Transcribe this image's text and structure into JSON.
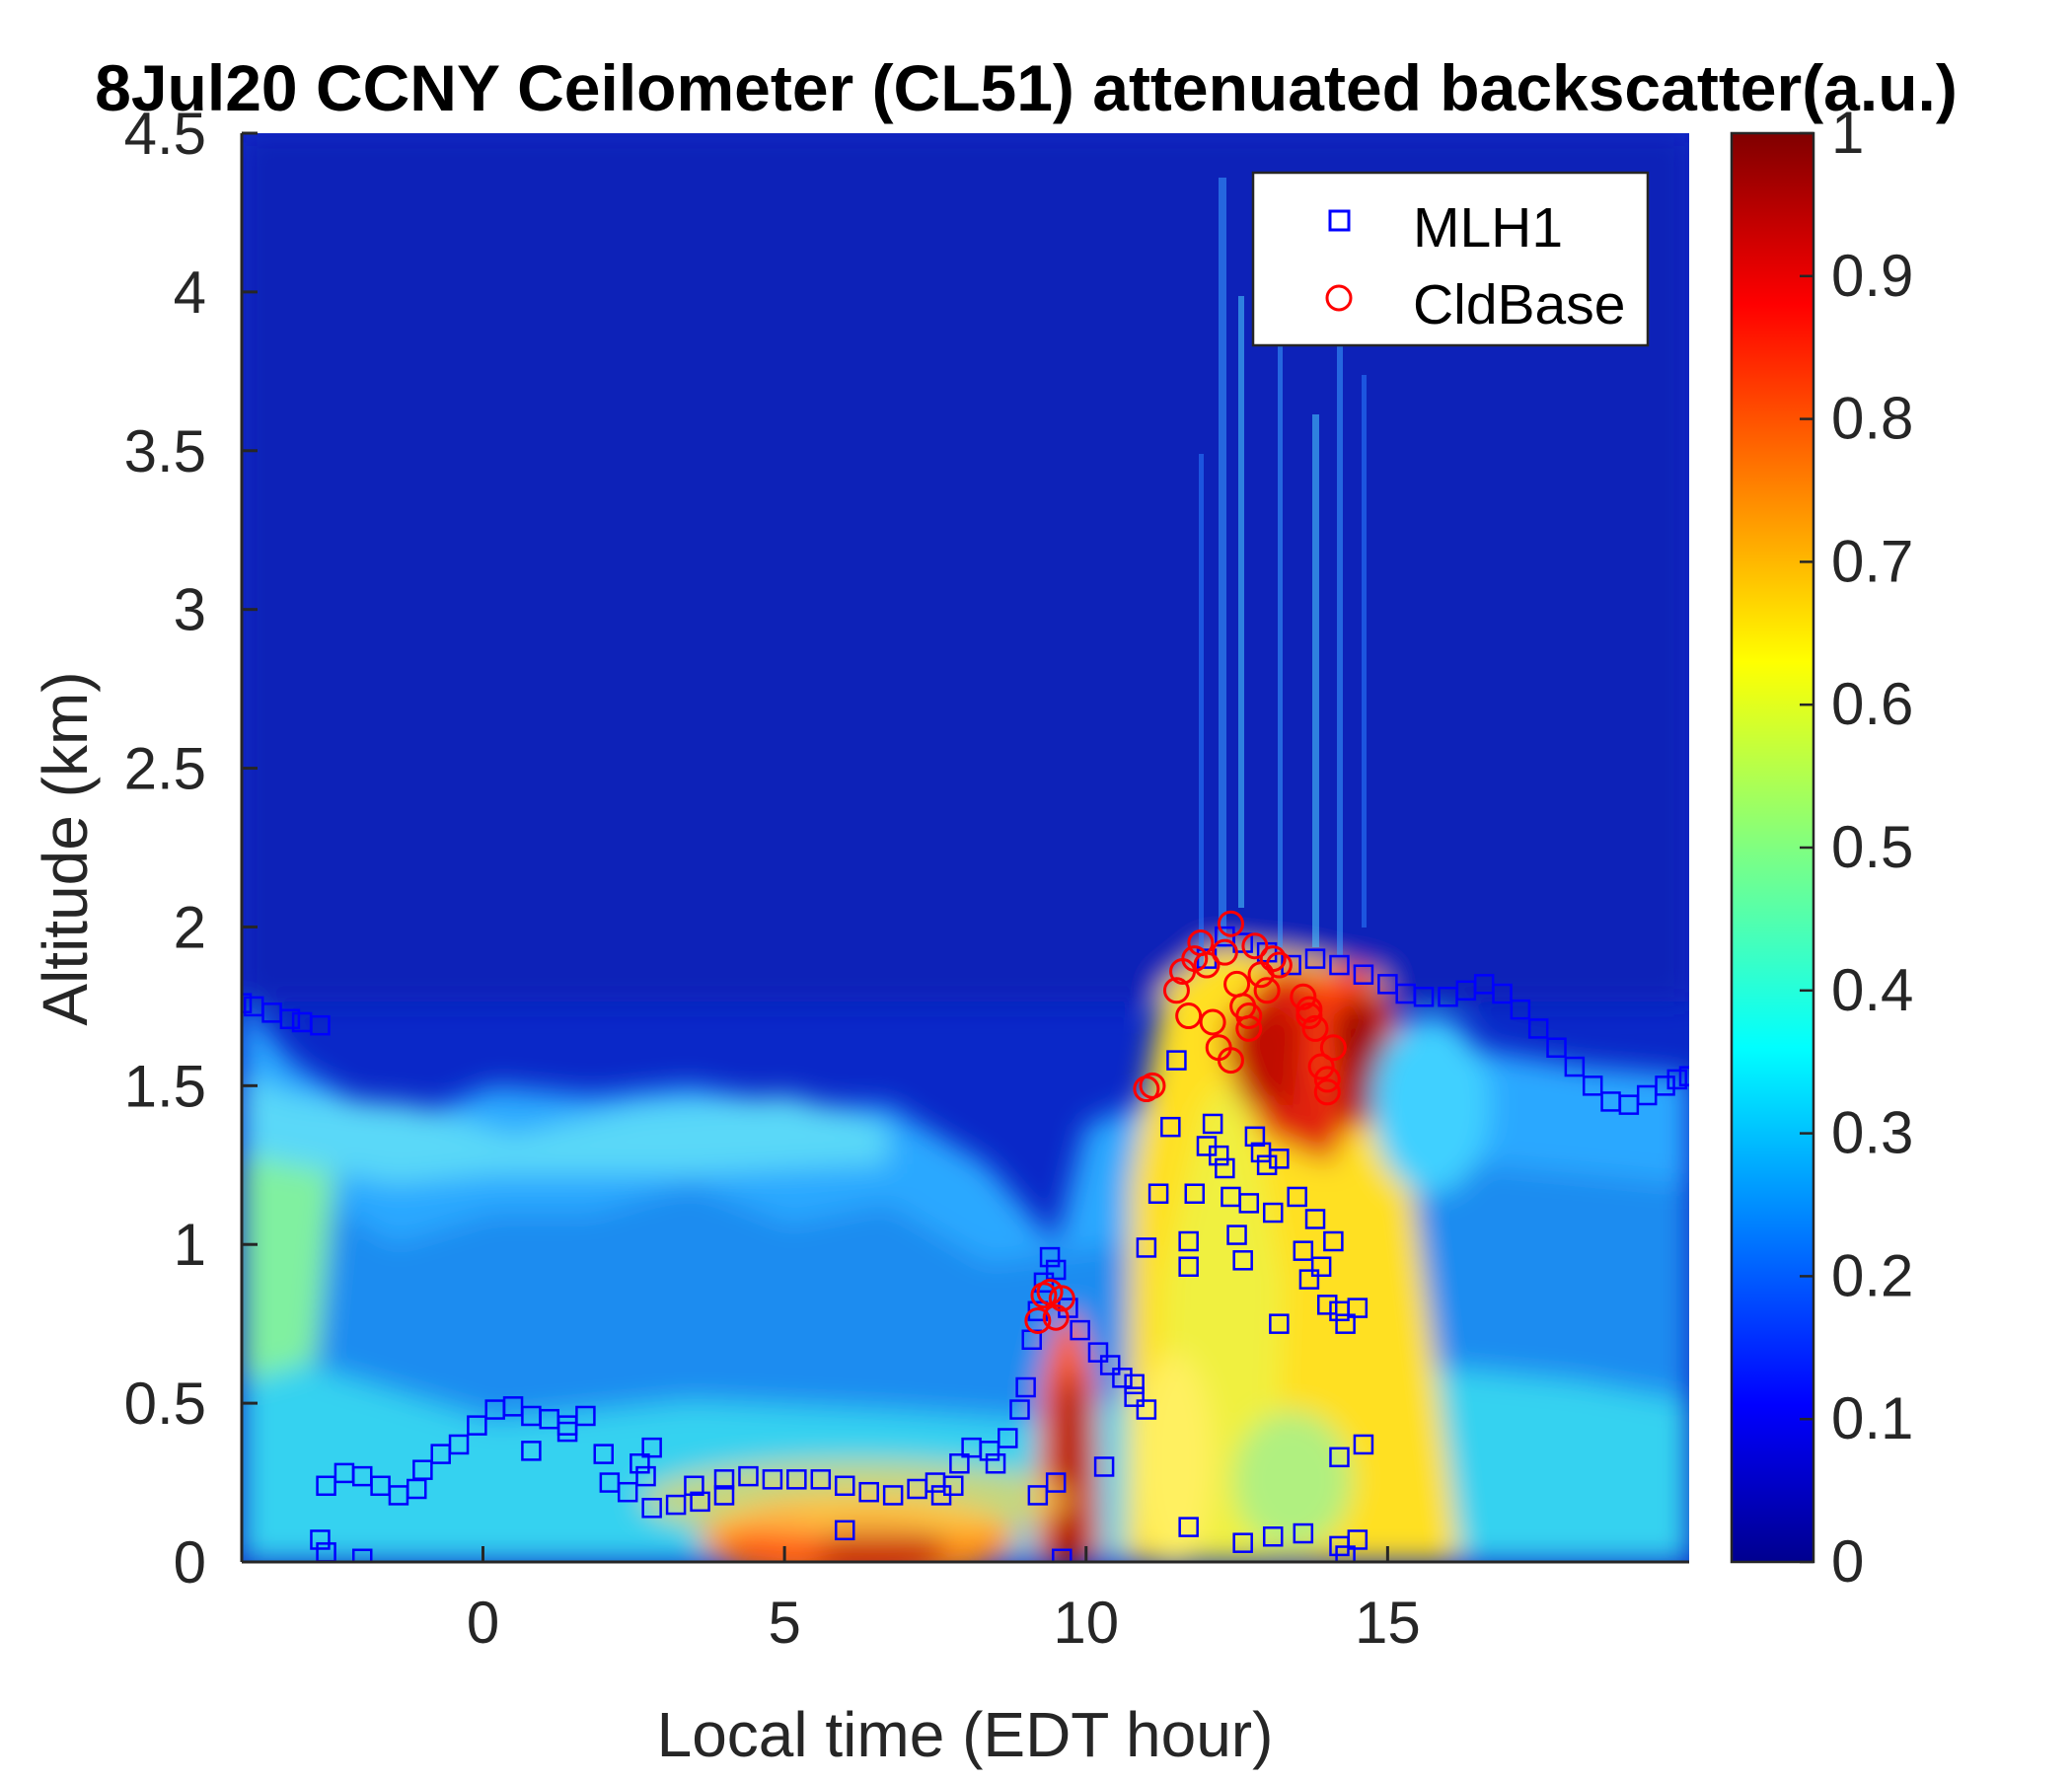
{
  "chart_data": {
    "type": "heatmap",
    "title": "8Jul20 CCNY Ceilometer (CL51) attenuated backscatter(a.u.)",
    "xlabel": "Local time (EDT hour)",
    "ylabel": "Altitude (km)",
    "xlim": [
      -4,
      20
    ],
    "ylim": [
      0,
      4.5
    ],
    "x_ticks": [
      "0",
      "5",
      "10",
      "15"
    ],
    "x_tick_values": [
      0,
      5,
      10,
      15
    ],
    "y_ticks": [
      "0",
      "0.5",
      "1",
      "1.5",
      "2",
      "2.5",
      "3",
      "3.5",
      "4",
      "4.5"
    ],
    "y_tick_values": [
      0,
      0.5,
      1,
      1.5,
      2,
      2.5,
      3,
      3.5,
      4,
      4.5
    ],
    "colorbar": {
      "colormap": "jet",
      "range": [
        0,
        1
      ],
      "ticks": [
        "0",
        "0.1",
        "0.2",
        "0.3",
        "0.4",
        "0.5",
        "0.6",
        "0.7",
        "0.8",
        "0.9",
        "1"
      ],
      "tick_values": [
        0,
        0.1,
        0.2,
        0.3,
        0.4,
        0.5,
        0.6,
        0.7,
        0.8,
        0.9,
        1
      ]
    },
    "legend": {
      "position": "top-right",
      "entries": [
        {
          "label": "MLH1",
          "marker": "square",
          "color": "#0000ff"
        },
        {
          "label": "CldBase",
          "marker": "circle",
          "color": "#ff0000"
        }
      ]
    },
    "series": [
      {
        "name": "MLH1",
        "marker": "square",
        "color": "#0000ff",
        "points": [
          [
            -4.0,
            1.76
          ],
          [
            -3.8,
            1.75
          ],
          [
            -3.5,
            1.73
          ],
          [
            -3.2,
            1.71
          ],
          [
            -3.0,
            1.7
          ],
          [
            -2.7,
            1.69
          ],
          [
            -2.7,
            0.07
          ],
          [
            -2.6,
            0.03
          ],
          [
            -2.0,
            0.01
          ],
          [
            -2.6,
            0.24
          ],
          [
            -2.3,
            0.28
          ],
          [
            -2.0,
            0.27
          ],
          [
            -1.7,
            0.24
          ],
          [
            -1.4,
            0.21
          ],
          [
            -1.1,
            0.23
          ],
          [
            -1.0,
            0.29
          ],
          [
            -0.7,
            0.34
          ],
          [
            -0.4,
            0.37
          ],
          [
            -0.1,
            0.43
          ],
          [
            0.2,
            0.48
          ],
          [
            0.5,
            0.49
          ],
          [
            0.8,
            0.46
          ],
          [
            1.1,
            0.45
          ],
          [
            1.4,
            0.43
          ],
          [
            1.7,
            0.46
          ],
          [
            0.8,
            0.35
          ],
          [
            1.4,
            0.41
          ],
          [
            2.0,
            0.34
          ],
          [
            2.1,
            0.25
          ],
          [
            2.4,
            0.22
          ],
          [
            2.7,
            0.27
          ],
          [
            2.8,
            0.36
          ],
          [
            2.6,
            0.31
          ],
          [
            2.8,
            0.17
          ],
          [
            3.2,
            0.18
          ],
          [
            3.6,
            0.19
          ],
          [
            4.0,
            0.21
          ],
          [
            3.5,
            0.24
          ],
          [
            4.0,
            0.26
          ],
          [
            4.4,
            0.27
          ],
          [
            4.8,
            0.26
          ],
          [
            5.2,
            0.26
          ],
          [
            5.6,
            0.26
          ],
          [
            6.0,
            0.24
          ],
          [
            6.4,
            0.22
          ],
          [
            6.8,
            0.21
          ],
          [
            7.2,
            0.23
          ],
          [
            7.5,
            0.25
          ],
          [
            7.8,
            0.24
          ],
          [
            7.6,
            0.21
          ],
          [
            6.0,
            0.1
          ],
          [
            7.9,
            0.31
          ],
          [
            8.1,
            0.36
          ],
          [
            8.4,
            0.35
          ],
          [
            8.7,
            0.39
          ],
          [
            8.9,
            0.48
          ],
          [
            9.0,
            0.55
          ],
          [
            8.5,
            0.31
          ],
          [
            9.1,
            0.7
          ],
          [
            9.2,
            0.79
          ],
          [
            9.3,
            0.88
          ],
          [
            9.4,
            0.96
          ],
          [
            9.5,
            0.92
          ],
          [
            9.7,
            0.8
          ],
          [
            9.9,
            0.73
          ],
          [
            10.2,
            0.66
          ],
          [
            10.4,
            0.62
          ],
          [
            10.6,
            0.58
          ],
          [
            10.8,
            0.52
          ],
          [
            11.0,
            0.48
          ],
          [
            9.2,
            0.21
          ],
          [
            9.5,
            0.25
          ],
          [
            9.6,
            0.01
          ],
          [
            10.3,
            0.3
          ],
          [
            10.8,
            0.56
          ],
          [
            11.0,
            0.99
          ],
          [
            11.2,
            1.16
          ],
          [
            11.4,
            1.37
          ],
          [
            11.5,
            1.58
          ],
          [
            11.7,
            1.01
          ],
          [
            11.7,
            0.93
          ],
          [
            11.8,
            1.16
          ],
          [
            12.0,
            1.31
          ],
          [
            12.1,
            1.38
          ],
          [
            12.2,
            1.28
          ],
          [
            12.3,
            1.24
          ],
          [
            12.4,
            1.15
          ],
          [
            12.5,
            1.03
          ],
          [
            12.6,
            0.95
          ],
          [
            12.7,
            1.13
          ],
          [
            12.8,
            1.34
          ],
          [
            12.9,
            1.29
          ],
          [
            13.0,
            1.25
          ],
          [
            13.1,
            1.1
          ],
          [
            13.2,
            1.27
          ],
          [
            13.2,
            0.75
          ],
          [
            13.5,
            1.15
          ],
          [
            13.6,
            0.98
          ],
          [
            13.7,
            0.89
          ],
          [
            13.8,
            1.08
          ],
          [
            13.9,
            0.93
          ],
          [
            14.0,
            0.81
          ],
          [
            14.1,
            1.01
          ],
          [
            14.2,
            0.79
          ],
          [
            14.3,
            0.75
          ],
          [
            14.5,
            0.8
          ],
          [
            11.7,
            0.11
          ],
          [
            12.6,
            0.06
          ],
          [
            13.1,
            0.08
          ],
          [
            13.6,
            0.09
          ],
          [
            14.2,
            0.05
          ],
          [
            14.3,
            0.02
          ],
          [
            14.5,
            0.07
          ],
          [
            14.2,
            0.33
          ],
          [
            14.6,
            0.37
          ],
          [
            12.0,
            1.9
          ],
          [
            12.3,
            1.97
          ],
          [
            12.6,
            1.95
          ],
          [
            13.0,
            1.92
          ],
          [
            13.4,
            1.88
          ],
          [
            13.8,
            1.9
          ],
          [
            14.2,
            1.88
          ],
          [
            14.6,
            1.85
          ],
          [
            15.0,
            1.82
          ],
          [
            15.3,
            1.79
          ],
          [
            15.6,
            1.78
          ],
          [
            16.0,
            1.78
          ],
          [
            16.3,
            1.8
          ],
          [
            16.6,
            1.82
          ],
          [
            16.9,
            1.79
          ],
          [
            17.2,
            1.74
          ],
          [
            17.5,
            1.68
          ],
          [
            17.8,
            1.62
          ],
          [
            18.1,
            1.56
          ],
          [
            18.4,
            1.5
          ],
          [
            18.7,
            1.45
          ],
          [
            19.0,
            1.44
          ],
          [
            19.3,
            1.47
          ],
          [
            19.6,
            1.5
          ],
          [
            19.8,
            1.52
          ],
          [
            20.0,
            1.53
          ]
        ]
      },
      {
        "name": "CldBase",
        "marker": "circle",
        "color": "#ff0000",
        "points": [
          [
            9.2,
            0.76
          ],
          [
            9.3,
            0.84
          ],
          [
            9.4,
            0.85
          ],
          [
            9.5,
            0.77
          ],
          [
            9.6,
            0.83
          ],
          [
            11.0,
            1.49
          ],
          [
            11.1,
            1.5
          ],
          [
            11.5,
            1.8
          ],
          [
            11.6,
            1.86
          ],
          [
            11.7,
            1.72
          ],
          [
            11.8,
            1.9
          ],
          [
            11.9,
            1.95
          ],
          [
            12.0,
            1.88
          ],
          [
            12.1,
            1.7
          ],
          [
            12.2,
            1.62
          ],
          [
            12.3,
            1.92
          ],
          [
            12.4,
            2.01
          ],
          [
            12.5,
            1.82
          ],
          [
            12.6,
            1.75
          ],
          [
            12.7,
            1.68
          ],
          [
            12.8,
            1.94
          ],
          [
            12.9,
            1.85
          ],
          [
            13.0,
            1.8
          ],
          [
            13.1,
            1.9
          ],
          [
            13.2,
            1.88
          ],
          [
            12.4,
            1.58
          ],
          [
            12.7,
            1.72
          ],
          [
            13.6,
            1.78
          ],
          [
            13.7,
            1.72
          ],
          [
            13.8,
            1.68
          ],
          [
            13.9,
            1.56
          ],
          [
            14.0,
            1.52
          ],
          [
            14.1,
            1.62
          ],
          [
            13.7,
            1.74
          ],
          [
            14.0,
            1.48
          ]
        ]
      }
    ]
  }
}
